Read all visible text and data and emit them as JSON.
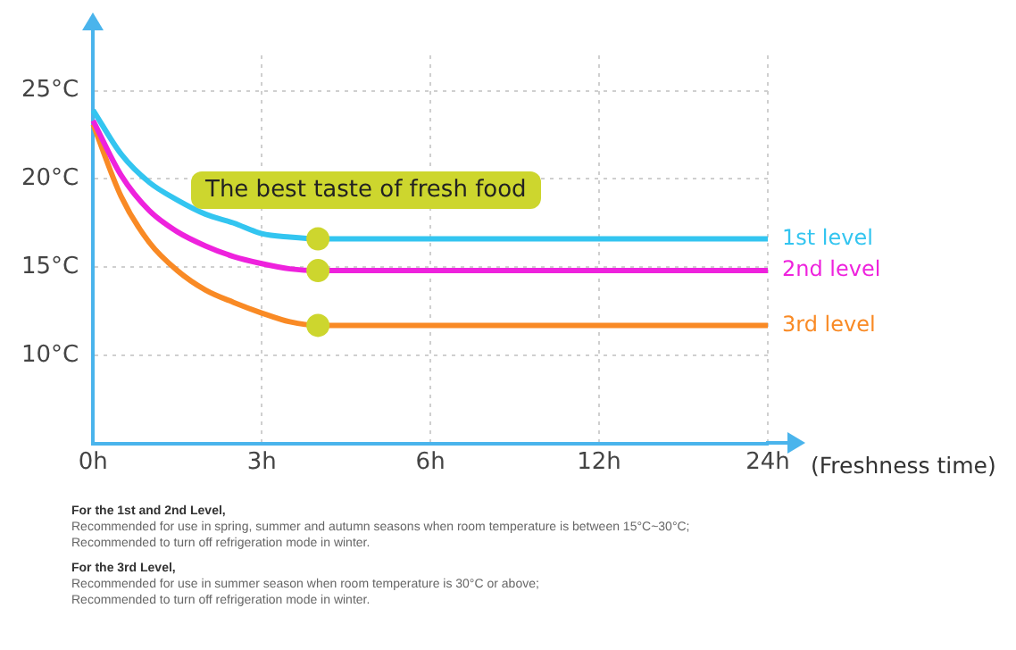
{
  "chart_data": {
    "type": "line",
    "xlabel": "(Freshness time)",
    "categories": [
      "0h",
      null,
      null,
      null,
      null,
      null,
      "3h",
      null,
      null,
      null,
      null,
      null,
      "6h",
      null,
      null,
      null,
      null,
      null,
      "12h",
      null,
      null,
      null,
      null,
      null,
      "24h"
    ],
    "series": [
      {
        "name": "1st level",
        "color": "#33c5f0",
        "values": [
          23.9,
          21.4,
          19.8,
          18.8,
          18.0,
          17.5,
          16.9,
          16.7,
          16.6,
          16.6,
          16.6,
          16.6,
          16.6,
          16.6,
          16.6,
          16.6,
          16.6,
          16.6,
          16.6,
          16.6,
          16.6,
          16.6,
          16.6,
          16.6,
          16.6
        ]
      },
      {
        "name": "2nd level",
        "color": "#ee22dd",
        "values": [
          23.3,
          20.2,
          18.2,
          17.0,
          16.2,
          15.6,
          15.2,
          14.9,
          14.8,
          14.8,
          14.8,
          14.8,
          14.8,
          14.8,
          14.8,
          14.8,
          14.8,
          14.8,
          14.8,
          14.8,
          14.8,
          14.8,
          14.8,
          14.8,
          14.8
        ]
      },
      {
        "name": "3rd level",
        "color": "#f98a25",
        "values": [
          23.1,
          19.0,
          16.4,
          14.8,
          13.7,
          13.0,
          12.4,
          11.9,
          11.7,
          11.7,
          11.7,
          11.7,
          11.7,
          11.7,
          11.7,
          11.7,
          11.7,
          11.7,
          11.7,
          11.7,
          11.7,
          11.7,
          11.7,
          11.7,
          11.7
        ]
      },
      {
        "type": "scatter",
        "marker": "circle",
        "color": "#cdd62e",
        "values": [
          null,
          null,
          null,
          null,
          null,
          null,
          null,
          null,
          16.6,
          null,
          null,
          null,
          null,
          null,
          null,
          null,
          null,
          null,
          null,
          null,
          null,
          null,
          null,
          null,
          null
        ]
      },
      {
        "type": "scatter",
        "marker": "circle",
        "color": "#cdd62e",
        "values": [
          null,
          null,
          null,
          null,
          null,
          null,
          null,
          null,
          14.8,
          null,
          null,
          null,
          null,
          null,
          null,
          null,
          null,
          null,
          null,
          null,
          null,
          null,
          null,
          null,
          null
        ]
      },
      {
        "type": "scatter",
        "marker": "circle",
        "color": "#cdd62e",
        "values": [
          null,
          null,
          null,
          null,
          null,
          null,
          null,
          null,
          11.7,
          null,
          null,
          null,
          null,
          null,
          null,
          null,
          null,
          null,
          null,
          null,
          null,
          null,
          null,
          null,
          null
        ]
      }
    ],
    "ylim": [
      5,
      27
    ],
    "yticks": [
      {
        "value": 10,
        "label": "10°C"
      },
      {
        "value": 15,
        "label": "15°C"
      },
      {
        "value": 20,
        "label": "20°C"
      },
      {
        "value": 25,
        "label": "25°C"
      }
    ],
    "grid": true,
    "legend": false,
    "marker": "none",
    "line_style": "solid",
    "annotations": [
      "The best taste of fresh food",
      "For the 1st and 2nd Level,\nRecommended for use in spring, summer and autumn seasons when room temperature is between 15°C~30°C;\nRecommended to turn off refrigeration mode in winter.",
      "For the 3rd Level,\nRecommended for use in summer season when room temperature is 30°C or above;\nRecommended to turn off refrigeration mode in winter."
    ]
  }
}
